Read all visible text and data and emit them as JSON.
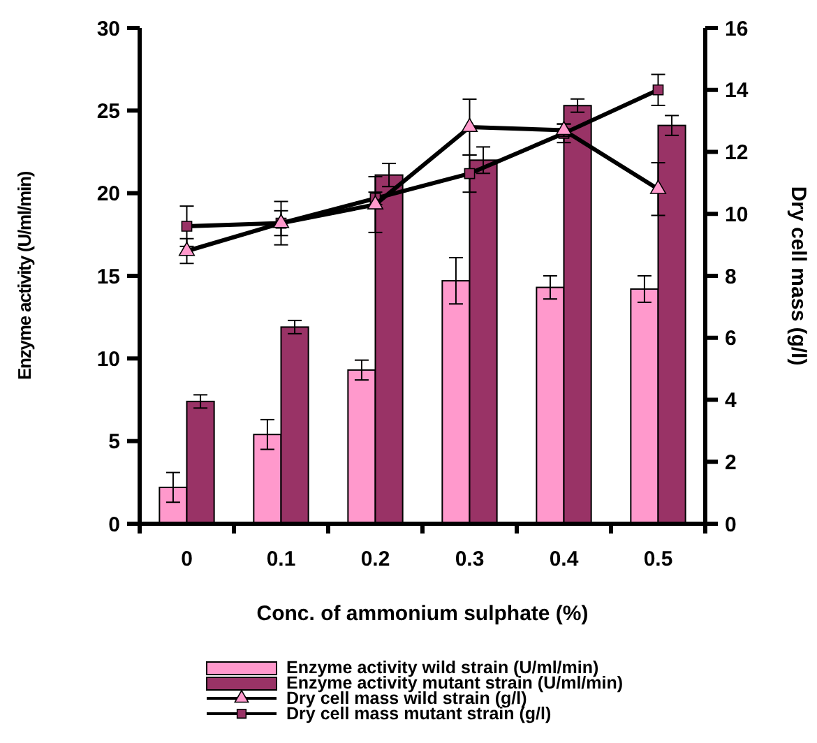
{
  "chart_data": {
    "type": "bar",
    "xlabel": "Conc. of ammonium sulphate (%)",
    "ylabel": "Enzyme activity (U/ml/min)",
    "y2label": "Dry cell mass (g/l)",
    "categories": [
      "0",
      "0.1",
      "0.2",
      "0.3",
      "0.4",
      "0.5"
    ],
    "series": [
      {
        "name": "Enzyme activity wild strain (U/ml/min)",
        "color": "#ff99cc",
        "values": [
          2.2,
          5.4,
          9.3,
          14.7,
          14.3,
          14.2
        ],
        "errors": [
          0.9,
          0.9,
          0.6,
          1.4,
          0.7,
          0.8
        ]
      },
      {
        "name": "Enzyme activity mutant strain (U/ml/min)",
        "color": "#993366",
        "values": [
          7.4,
          11.9,
          21.1,
          22.0,
          25.3,
          24.1
        ],
        "errors": [
          0.4,
          0.4,
          0.7,
          0.8,
          0.4,
          0.6
        ]
      },
      {
        "name": "Dry cell mass wild strain (g/l)",
        "type": "line",
        "axis": "y2",
        "marker": "triangle",
        "color": "#ff99cc",
        "values": [
          8.8,
          9.7,
          10.3,
          12.8,
          12.7,
          10.8
        ],
        "errors": [
          0.4,
          0.7,
          0.9,
          0.9,
          0.2,
          0.85
        ]
      },
      {
        "name": "Dry cell mass mutant strain (g/l)",
        "type": "line",
        "axis": "y2",
        "marker": "square",
        "color": "#993366",
        "values": [
          9.6,
          9.7,
          10.5,
          11.3,
          12.6,
          14.0
        ],
        "errors": [
          0.65,
          0.4,
          0.2,
          0.6,
          0.3,
          0.5
        ]
      }
    ],
    "ylim": [
      0,
      30
    ],
    "yticks": [
      0,
      5,
      10,
      15,
      20,
      25,
      30
    ],
    "y2lim": [
      0,
      16
    ],
    "y2ticks": [
      0,
      2,
      4,
      6,
      8,
      10,
      12,
      14,
      16
    ],
    "grid": false,
    "legend": "bottom"
  }
}
